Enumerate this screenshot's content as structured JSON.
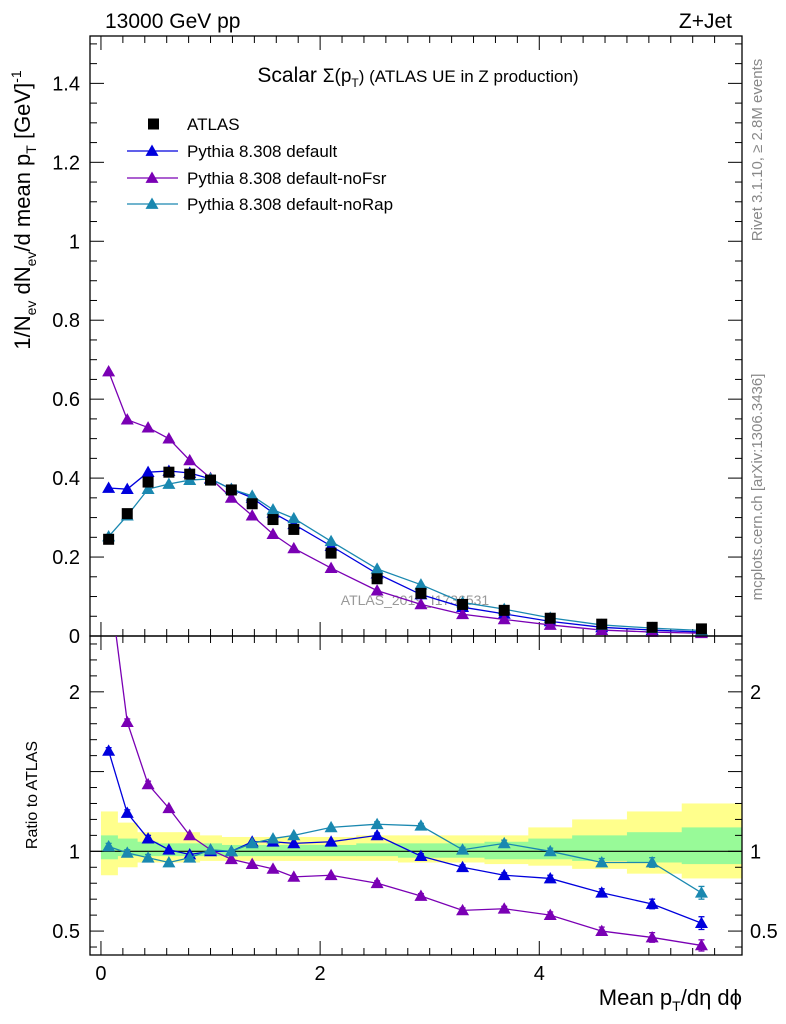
{
  "header": {
    "left": "13000 GeV pp",
    "right": "Z+Jet"
  },
  "side_labels": {
    "rivet": "Rivet 3.1.10, ≥ 2.8M events",
    "mcplots": "mcplots.cern.ch [arXiv:1306.3436]"
  },
  "watermark": "ATLAS_2019_I1736531",
  "colors": {
    "atlas": "#000000",
    "default": "#0000dd",
    "noFsr": "#7a00b4",
    "noRap": "#1a88b0",
    "band_outer": "#ffff8c",
    "band_inner": "#98fa98"
  },
  "chart_data": [
    {
      "type": "line",
      "title": "Scalar Σ(pT) (ATLAS UE in Z production)",
      "title_parts": {
        "prefix": "Scalar ",
        "sigma": "Σ(p",
        "sub": "T",
        "suffix": ") (ATLAS UE in Z production)"
      },
      "ylabel": "1/Nev dNev/d mean pT [GeV]-1",
      "ylabel_parts": {
        "a": "1/N",
        "a_sub": "ev",
        "b": " dN",
        "b_sub": "ev",
        "c": "/d mean p",
        "c_sub": "T",
        "d": " [GeV]",
        "d_sup": "-1"
      },
      "xlabel": "",
      "xlim": [
        -0.1,
        5.85
      ],
      "ylim": [
        0,
        1.52
      ],
      "yticks": [
        0,
        0.2,
        0.4,
        0.6,
        0.8,
        1,
        1.2,
        1.4
      ],
      "ytick_labels": [
        "0",
        "0.2",
        "0.4",
        "0.6",
        "0.8",
        "1",
        "1.2",
        "1.4"
      ],
      "legend": [
        "ATLAS",
        "Pythia 8.308 default",
        "Pythia 8.308 default-noFsr",
        "Pythia 8.308 default-noRap"
      ],
      "legend_position": "top-left",
      "x": [
        0.07,
        0.24,
        0.43,
        0.62,
        0.81,
        1.0,
        1.19,
        1.38,
        1.57,
        1.76,
        2.1,
        2.52,
        2.92,
        3.3,
        3.68,
        4.1,
        4.57,
        5.03,
        5.48
      ],
      "series": [
        {
          "name": "ATLAS",
          "marker": "square",
          "values": [
            0.245,
            0.31,
            0.39,
            0.415,
            0.41,
            0.395,
            0.37,
            0.335,
            0.295,
            0.27,
            0.21,
            0.145,
            0.108,
            0.08,
            0.065,
            0.045,
            0.03,
            0.022,
            0.018
          ]
        },
        {
          "name": "Pythia 8.308 default",
          "marker": "triangle",
          "values": [
            0.375,
            0.372,
            0.415,
            0.418,
            0.413,
            0.398,
            0.372,
            0.35,
            0.312,
            0.283,
            0.228,
            0.158,
            0.105,
            0.073,
            0.056,
            0.037,
            0.022,
            0.015,
            0.01
          ]
        },
        {
          "name": "Pythia 8.308 default-noFsr",
          "marker": "triangle",
          "values": [
            0.67,
            0.548,
            0.528,
            0.5,
            0.445,
            0.4,
            0.35,
            0.305,
            0.258,
            0.222,
            0.172,
            0.115,
            0.08,
            0.055,
            0.042,
            0.028,
            0.015,
            0.01,
            0.007
          ]
        },
        {
          "name": "Pythia 8.308 default-noRap",
          "marker": "triangle",
          "values": [
            0.252,
            0.305,
            0.372,
            0.385,
            0.395,
            0.398,
            0.372,
            0.355,
            0.32,
            0.298,
            0.24,
            0.17,
            0.13,
            0.085,
            0.068,
            0.046,
            0.028,
            0.02,
            0.014
          ]
        }
      ]
    },
    {
      "type": "line",
      "title": "",
      "ylabel": "Ratio to ATLAS",
      "xlabel": "Mean pT/dη dϕ",
      "xlabel_parts": {
        "a": "Mean p",
        "a_sub": "T",
        "b": "/dη dϕ"
      },
      "xlim": [
        -0.1,
        5.85
      ],
      "ylim": [
        0.35,
        2.35
      ],
      "xticks": [
        0,
        2,
        4
      ],
      "xtick_labels": [
        "0",
        "2",
        "4"
      ],
      "yticks": [
        0.5,
        1,
        2
      ],
      "ytick_labels": [
        "0.5",
        "1",
        "2"
      ],
      "bin_edges": [
        0,
        0.15,
        0.33,
        0.52,
        0.71,
        0.9,
        1.1,
        1.29,
        1.48,
        1.67,
        1.86,
        2.33,
        2.71,
        3.1,
        3.5,
        3.9,
        4.3,
        4.8,
        5.3,
        5.85
      ],
      "band_outer": [
        [
          0.85,
          1.25
        ],
        [
          0.9,
          1.18
        ],
        [
          0.93,
          1.12
        ],
        [
          0.93,
          1.12
        ],
        [
          0.93,
          1.12
        ],
        [
          0.94,
          1.1
        ],
        [
          0.94,
          1.09
        ],
        [
          0.94,
          1.09
        ],
        [
          0.94,
          1.09
        ],
        [
          0.94,
          1.09
        ],
        [
          0.94,
          1.09
        ],
        [
          0.94,
          1.1
        ],
        [
          0.93,
          1.1
        ],
        [
          0.93,
          1.1
        ],
        [
          0.92,
          1.1
        ],
        [
          0.91,
          1.15
        ],
        [
          0.89,
          1.2
        ],
        [
          0.86,
          1.25
        ],
        [
          0.83,
          1.3
        ]
      ],
      "band_inner": [
        [
          0.95,
          1.1
        ],
        [
          0.97,
          1.08
        ],
        [
          0.97,
          1.06
        ],
        [
          0.97,
          1.05
        ],
        [
          0.97,
          1.05
        ],
        [
          0.97,
          1.05
        ],
        [
          0.97,
          1.04
        ],
        [
          0.97,
          1.04
        ],
        [
          0.97,
          1.04
        ],
        [
          0.97,
          1.04
        ],
        [
          0.97,
          1.04
        ],
        [
          0.97,
          1.05
        ],
        [
          0.96,
          1.05
        ],
        [
          0.96,
          1.05
        ],
        [
          0.95,
          1.06
        ],
        [
          0.95,
          1.08
        ],
        [
          0.94,
          1.1
        ],
        [
          0.93,
          1.12
        ],
        [
          0.92,
          1.15
        ]
      ],
      "x": [
        0.07,
        0.24,
        0.43,
        0.62,
        0.81,
        1.0,
        1.19,
        1.38,
        1.57,
        1.76,
        2.1,
        2.52,
        2.92,
        3.3,
        3.68,
        4.1,
        4.57,
        5.03,
        5.48
      ],
      "series": [
        {
          "name": "Pythia 8.308 default",
          "values": [
            1.63,
            1.24,
            1.08,
            1.01,
            0.98,
            1.0,
            1.0,
            1.06,
            1.06,
            1.05,
            1.06,
            1.1,
            0.97,
            0.9,
            0.85,
            0.83,
            0.74,
            0.67,
            0.55
          ],
          "errors": [
            0.02,
            0.02,
            0.02,
            0.01,
            0.01,
            0.01,
            0.01,
            0.01,
            0.01,
            0.01,
            0.01,
            0.015,
            0.015,
            0.015,
            0.015,
            0.02,
            0.025,
            0.03,
            0.04
          ]
        },
        {
          "name": "Pythia 8.308 default-noFsr",
          "values": [
            2.72,
            1.81,
            1.42,
            1.27,
            1.1,
            1.01,
            0.95,
            0.92,
            0.89,
            0.84,
            0.85,
            0.8,
            0.72,
            0.63,
            0.64,
            0.6,
            0.5,
            0.46,
            0.41
          ],
          "errors": [
            0.02,
            0.02,
            0.02,
            0.01,
            0.01,
            0.01,
            0.01,
            0.01,
            0.01,
            0.01,
            0.01,
            0.015,
            0.015,
            0.015,
            0.015,
            0.02,
            0.025,
            0.03,
            0.035
          ]
        },
        {
          "name": "Pythia 8.308 default-noRap",
          "values": [
            1.03,
            0.99,
            0.96,
            0.93,
            0.96,
            1.01,
            1.0,
            1.05,
            1.08,
            1.1,
            1.15,
            1.17,
            1.16,
            1.01,
            1.05,
            1.0,
            0.93,
            0.93,
            0.74
          ],
          "errors": [
            0.02,
            0.02,
            0.02,
            0.01,
            0.01,
            0.01,
            0.01,
            0.01,
            0.01,
            0.01,
            0.01,
            0.015,
            0.015,
            0.015,
            0.02,
            0.02,
            0.025,
            0.03,
            0.04
          ]
        }
      ]
    }
  ]
}
